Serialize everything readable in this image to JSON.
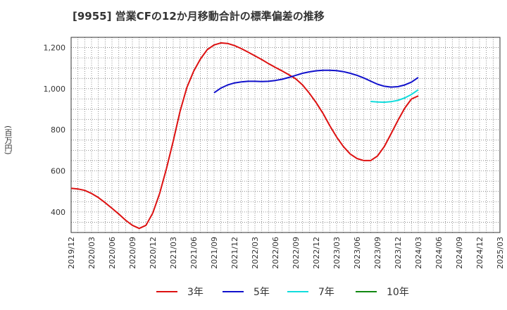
{
  "title": "[9955]  営業CFの12か月移動合計の標準偏差の推移",
  "chart_data": {
    "type": "line",
    "title": "[9955]  営業CFの12か月移動合計の標準偏差の推移",
    "xlabel": "",
    "ylabel": "(百万円)",
    "ylim": [
      300,
      1250
    ],
    "yticks": [
      400,
      600,
      800,
      1000,
      1200
    ],
    "yticklabels": [
      "400",
      "600",
      "800",
      "1,000",
      "1,200"
    ],
    "xlim": [
      "2019-12",
      "2025-03"
    ],
    "xticks": [
      "2019/12",
      "2020/03",
      "2020/06",
      "2020/09",
      "2020/12",
      "2021/03",
      "2021/06",
      "2021/09",
      "2021/12",
      "2022/03",
      "2022/06",
      "2022/09",
      "2022/12",
      "2023/03",
      "2023/06",
      "2023/09",
      "2023/12",
      "2024/03",
      "2024/06",
      "2024/09",
      "2024/12",
      "2025/03"
    ],
    "grid": true,
    "legend_position": "bottom",
    "series": [
      {
        "name": "3年",
        "color": "#dd1111",
        "points": [
          [
            "2019-12",
            515
          ],
          [
            "2020-01",
            512
          ],
          [
            "2020-02",
            505
          ],
          [
            "2020-03",
            490
          ],
          [
            "2020-04",
            470
          ],
          [
            "2020-05",
            445
          ],
          [
            "2020-06",
            418
          ],
          [
            "2020-07",
            390
          ],
          [
            "2020-08",
            360
          ],
          [
            "2020-09",
            335
          ],
          [
            "2020-10",
            320
          ],
          [
            "2020-11",
            335
          ],
          [
            "2020-12",
            395
          ],
          [
            "2021-01",
            490
          ],
          [
            "2021-02",
            610
          ],
          [
            "2021-03",
            745
          ],
          [
            "2021-04",
            890
          ],
          [
            "2021-05",
            1005
          ],
          [
            "2021-06",
            1085
          ],
          [
            "2021-07",
            1145
          ],
          [
            "2021-08",
            1190
          ],
          [
            "2021-09",
            1213
          ],
          [
            "2021-10",
            1223
          ],
          [
            "2021-11",
            1220
          ],
          [
            "2021-12",
            1210
          ],
          [
            "2022-01",
            1195
          ],
          [
            "2022-02",
            1178
          ],
          [
            "2022-03",
            1160
          ],
          [
            "2022-04",
            1142
          ],
          [
            "2022-05",
            1122
          ],
          [
            "2022-06",
            1104
          ],
          [
            "2022-07",
            1086
          ],
          [
            "2022-08",
            1068
          ],
          [
            "2022-09",
            1048
          ],
          [
            "2022-10",
            1018
          ],
          [
            "2022-11",
            978
          ],
          [
            "2022-12",
            932
          ],
          [
            "2023-01",
            880
          ],
          [
            "2023-02",
            820
          ],
          [
            "2023-03",
            765
          ],
          [
            "2023-04",
            718
          ],
          [
            "2023-05",
            682
          ],
          [
            "2023-06",
            660
          ],
          [
            "2023-07",
            650
          ],
          [
            "2023-08",
            650
          ],
          [
            "2023-09",
            672
          ],
          [
            "2023-10",
            718
          ],
          [
            "2023-11",
            780
          ],
          [
            "2023-12",
            845
          ],
          [
            "2024-01",
            905
          ],
          [
            "2024-02",
            950
          ],
          [
            "2024-03",
            965
          ]
        ]
      },
      {
        "name": "5年",
        "color": "#1111cc",
        "points": [
          [
            "2021-09",
            980
          ],
          [
            "2021-10",
            1003
          ],
          [
            "2021-11",
            1018
          ],
          [
            "2021-12",
            1028
          ],
          [
            "2022-01",
            1033
          ],
          [
            "2022-02",
            1036
          ],
          [
            "2022-03",
            1036
          ],
          [
            "2022-04",
            1035
          ],
          [
            "2022-05",
            1036
          ],
          [
            "2022-06",
            1040
          ],
          [
            "2022-07",
            1046
          ],
          [
            "2022-08",
            1055
          ],
          [
            "2022-09",
            1065
          ],
          [
            "2022-10",
            1075
          ],
          [
            "2022-11",
            1082
          ],
          [
            "2022-12",
            1087
          ],
          [
            "2023-01",
            1090
          ],
          [
            "2023-02",
            1090
          ],
          [
            "2023-03",
            1088
          ],
          [
            "2023-04",
            1083
          ],
          [
            "2023-05",
            1075
          ],
          [
            "2023-06",
            1065
          ],
          [
            "2023-07",
            1052
          ],
          [
            "2023-08",
            1037
          ],
          [
            "2023-09",
            1022
          ],
          [
            "2023-10",
            1012
          ],
          [
            "2023-11",
            1008
          ],
          [
            "2023-12",
            1010
          ],
          [
            "2024-01",
            1018
          ],
          [
            "2024-02",
            1032
          ],
          [
            "2024-03",
            1055
          ]
        ]
      },
      {
        "name": "7年",
        "color": "#11dddd",
        "points": [
          [
            "2023-08",
            938
          ],
          [
            "2023-09",
            935
          ],
          [
            "2023-10",
            934
          ],
          [
            "2023-11",
            937
          ],
          [
            "2023-12",
            943
          ],
          [
            "2024-01",
            955
          ],
          [
            "2024-02",
            972
          ],
          [
            "2024-03",
            995
          ]
        ]
      },
      {
        "name": "10年",
        "color": "#118811",
        "points": []
      }
    ]
  }
}
